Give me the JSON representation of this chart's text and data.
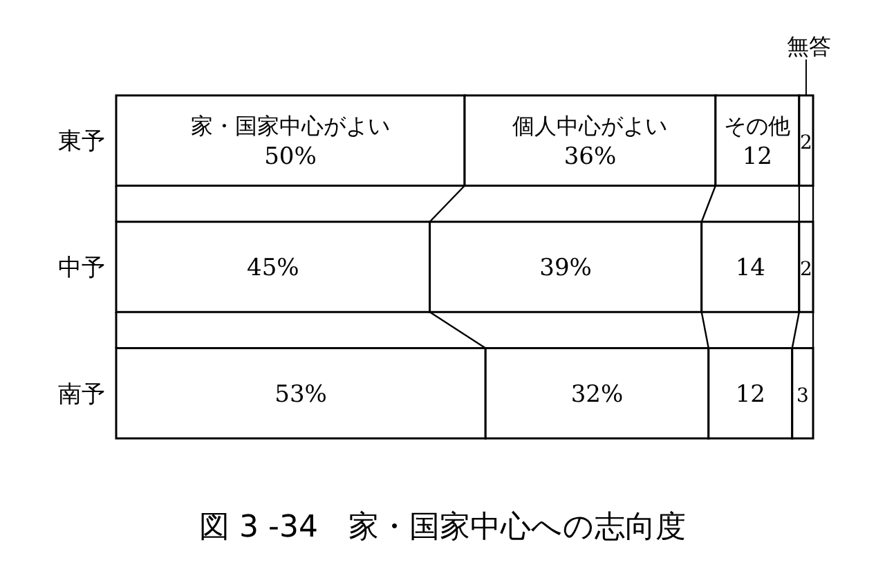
{
  "chart_data": {
    "type": "bar",
    "orientation": "horizontal",
    "stacked": true,
    "title": "図 3 -34　家・国家中心への志向度",
    "categories": [
      "東予",
      "中予",
      "南予"
    ],
    "series": [
      {
        "name": "家・国家中心がよい",
        "color": "#ffffff",
        "values": [
          50,
          45,
          53
        ],
        "value_labels": [
          "50%",
          "45%",
          "53%"
        ]
      },
      {
        "name": "個人中心がよい",
        "color": "#ffffff",
        "values": [
          36,
          39,
          32
        ],
        "value_labels": [
          "36%",
          "39%",
          "32%"
        ]
      },
      {
        "name": "その他",
        "color": "#ffffff",
        "values": [
          12,
          14,
          12
        ],
        "value_labels": [
          "12",
          "14",
          "12"
        ]
      },
      {
        "name": "無答",
        "color": "#ffffff",
        "values": [
          2,
          2,
          3
        ],
        "value_labels": [
          "2",
          "2",
          "3"
        ]
      }
    ]
  }
}
